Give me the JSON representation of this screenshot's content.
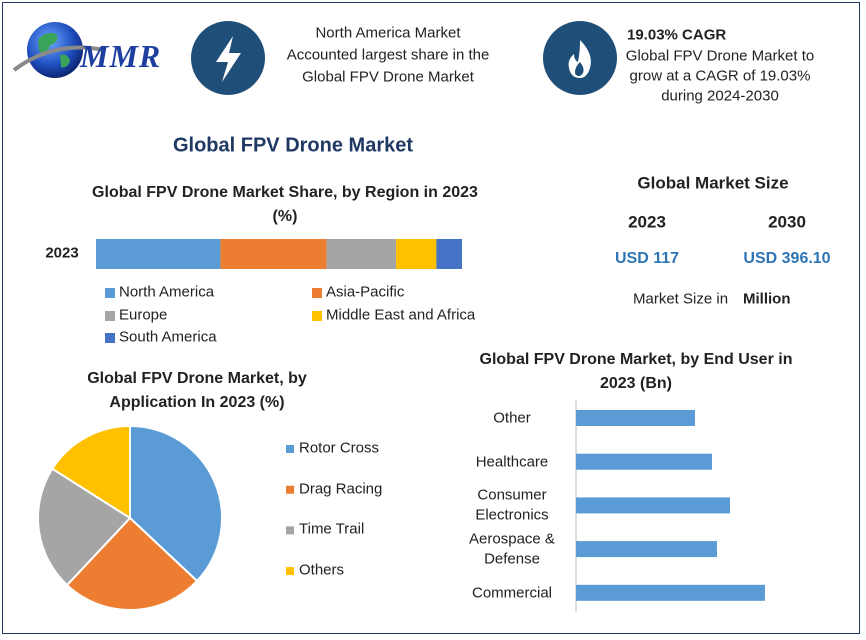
{
  "header": {
    "logo": "MMR",
    "highlight_lines": [
      "North America Market",
      "Accounted largest share in the",
      "Global FPV Drone Market"
    ],
    "cagr_title": "19.03% CAGR",
    "cagr_lines": [
      "Global FPV Drone Market to",
      "grow at a CAGR of 19.03%",
      "during 2024-2030"
    ]
  },
  "title": "Global FPV Drone Market",
  "market_size": {
    "title": "Global Market Size",
    "years": [
      "2023",
      "2030"
    ],
    "values": [
      "USD 117",
      "USD 396.10"
    ],
    "note": "Market Size in",
    "unit": "Million"
  },
  "chart_data": [
    {
      "type": "stacked-bar",
      "title": "Global FPV Drone Market Share, by Region in 2023 (%)",
      "categories": [
        "2023"
      ],
      "xlim": [
        0,
        100
      ],
      "series": [
        {
          "name": "North America",
          "color": "#5b9bd5",
          "values": [
            34
          ]
        },
        {
          "name": "Asia-Pacific",
          "color": "#ed7d31",
          "values": [
            29
          ]
        },
        {
          "name": "Europe",
          "color": "#a5a5a5",
          "values": [
            19
          ]
        },
        {
          "name": "Middle East and Africa",
          "color": "#ffc000",
          "values": [
            11
          ]
        },
        {
          "name": "South America",
          "color": "#4472c4",
          "values": [
            7
          ]
        }
      ]
    },
    {
      "type": "pie",
      "title": "Global FPV Drone Market, by Application In 2023 (%)",
      "categories": [
        "Rotor Cross",
        "Drag Racing",
        "Time Trail",
        "Others"
      ],
      "values": [
        37,
        25,
        22,
        16
      ],
      "colors": [
        "#5b9bd5",
        "#ed7d31",
        "#a5a5a5",
        "#ffc000"
      ]
    },
    {
      "type": "hbar",
      "title": "Global FPV Drone Market, by End User in 2023 (Bn)",
      "categories": [
        "Other",
        "Healthcare",
        "Consumer Electronics",
        "Aerospace & Defense",
        "Commercial"
      ],
      "values": [
        11.9,
        13.6,
        15.4,
        14.1,
        18.9
      ],
      "xlim": [
        0,
        25
      ],
      "color": "#5b9bd5"
    }
  ]
}
